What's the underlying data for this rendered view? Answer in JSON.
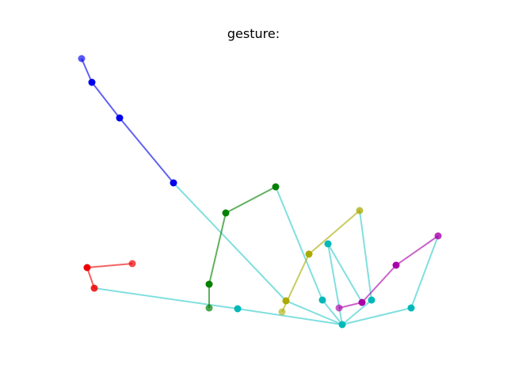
{
  "title": "gesture:",
  "colors": {
    "palm": "#33cccc",
    "thumb": "#ee0000",
    "index": "#008000",
    "middle": "#aaaa00",
    "ring": "#aa00aa",
    "pinky": "#0000ee",
    "joint_palm": "#00b8b8"
  },
  "bones": [
    {
      "group": "palm",
      "from": "wrist",
      "to": "thumb_base"
    },
    {
      "group": "palm",
      "from": "wrist",
      "to": "index_base"
    },
    {
      "group": "palm",
      "from": "wrist",
      "to": "middle_base"
    },
    {
      "group": "palm",
      "from": "wrist",
      "to": "ring_base"
    },
    {
      "group": "palm",
      "from": "wrist",
      "to": "pinky_base"
    },
    {
      "group": "palm",
      "from": "thumb_base",
      "to": "thumb_cmc"
    },
    {
      "group": "palm",
      "from": "index_base",
      "to": "index_mcp"
    },
    {
      "group": "palm",
      "from": "middle_base",
      "to": "middle_mcp"
    },
    {
      "group": "palm",
      "from": "ring_base",
      "to": "ring_mcp"
    },
    {
      "group": "palm",
      "from": "pinky_base",
      "to": "pinky_mcp"
    },
    {
      "group": "thumb",
      "from": "thumb_cmc",
      "to": "thumb_mcp"
    },
    {
      "group": "thumb",
      "from": "thumb_mcp",
      "to": "thumb_tip"
    },
    {
      "group": "index",
      "from": "index_mcp",
      "to": "index_pip"
    },
    {
      "group": "index",
      "from": "index_pip",
      "to": "index_dip"
    },
    {
      "group": "index",
      "from": "index_dip",
      "to": "index_tip"
    },
    {
      "group": "middle",
      "from": "middle_mcp",
      "to": "middle_pip"
    },
    {
      "group": "middle",
      "from": "middle_pip",
      "to": "middle_tip"
    },
    {
      "group": "middle",
      "from": "middle_mcp",
      "to": "middle_dip"
    },
    {
      "group": "ring",
      "from": "ring_mcp",
      "to": "ring_pip"
    },
    {
      "group": "ring",
      "from": "ring_pip",
      "to": "ring_tip"
    },
    {
      "group": "pinky",
      "from": "pinky_mcp",
      "to": "pinky_pip"
    },
    {
      "group": "pinky",
      "from": "pinky_pip",
      "to": "pinky_dip"
    },
    {
      "group": "pinky",
      "from": "pinky_dip",
      "to": "pinky_tip"
    }
  ]
}
